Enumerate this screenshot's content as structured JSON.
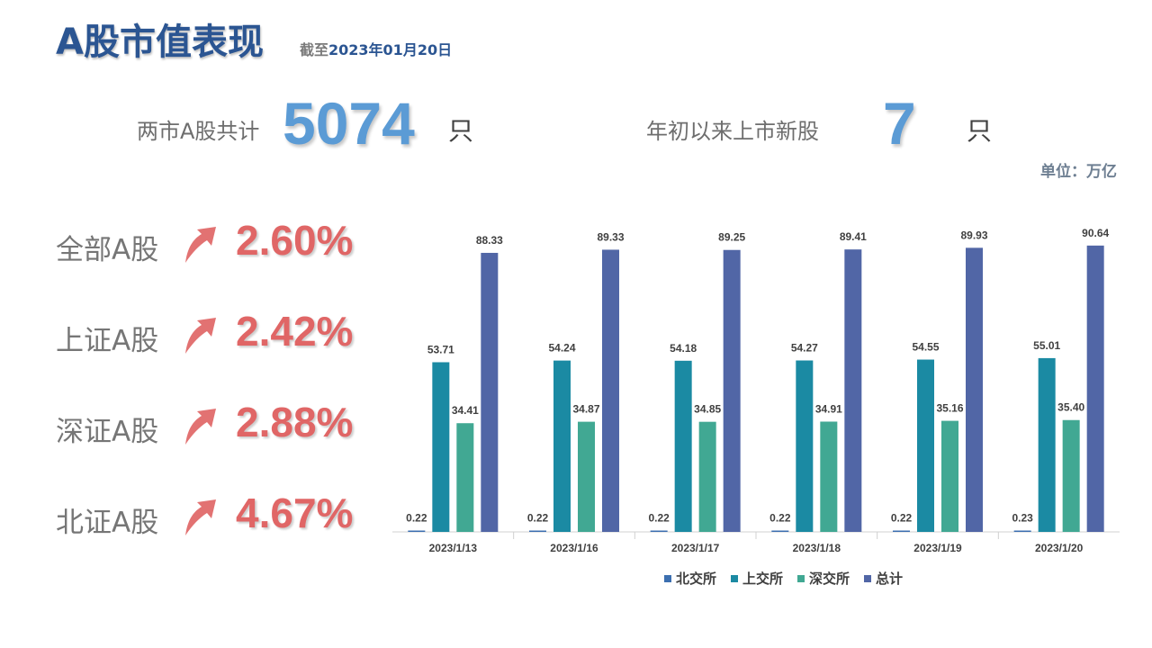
{
  "header": {
    "title": "A股市值表现",
    "date_prefix": "截至",
    "date_value": "2023年01月20日"
  },
  "stats": {
    "total_label": "两市A股共计",
    "total_value": "5074",
    "total_unit": "只",
    "new_label": "年初以来上市新股",
    "new_value": "7",
    "new_unit": "只"
  },
  "unit_note": "单位：万亿",
  "indices": [
    {
      "name": "全部A股",
      "change": "2.60%",
      "icon": "up-arrow-icon"
    },
    {
      "name": "上证A股",
      "change": "2.42%",
      "icon": "up-arrow-icon"
    },
    {
      "name": "深证A股",
      "change": "2.88%",
      "icon": "up-arrow-icon"
    },
    {
      "name": "北证A股",
      "change": "4.67%",
      "icon": "up-arrow-icon"
    }
  ],
  "colors": {
    "title": "#2b5592",
    "stat_value": "#5b9bd5",
    "index_change": "#e06666",
    "arrow": "#e06666"
  },
  "chart_data": {
    "type": "bar",
    "categories": [
      "2023/1/13",
      "2023/1/16",
      "2023/1/17",
      "2023/1/18",
      "2023/1/19",
      "2023/1/20"
    ],
    "series": [
      {
        "name": "北交所",
        "color": "#3c6fb0",
        "values": [
          0.22,
          0.22,
          0.22,
          0.22,
          0.22,
          0.23
        ]
      },
      {
        "name": "上交所",
        "color": "#1b8aa3",
        "values": [
          53.71,
          54.24,
          54.18,
          54.27,
          54.55,
          55.01
        ]
      },
      {
        "name": "深交所",
        "color": "#41a893",
        "values": [
          34.41,
          34.87,
          34.85,
          34.91,
          35.16,
          35.4
        ]
      },
      {
        "name": "总计",
        "color": "#5166a6",
        "values": [
          88.33,
          89.33,
          89.25,
          89.41,
          89.93,
          90.64
        ]
      }
    ],
    "ylim": [
      0,
      100
    ],
    "legend": "bottom",
    "grid": false
  }
}
